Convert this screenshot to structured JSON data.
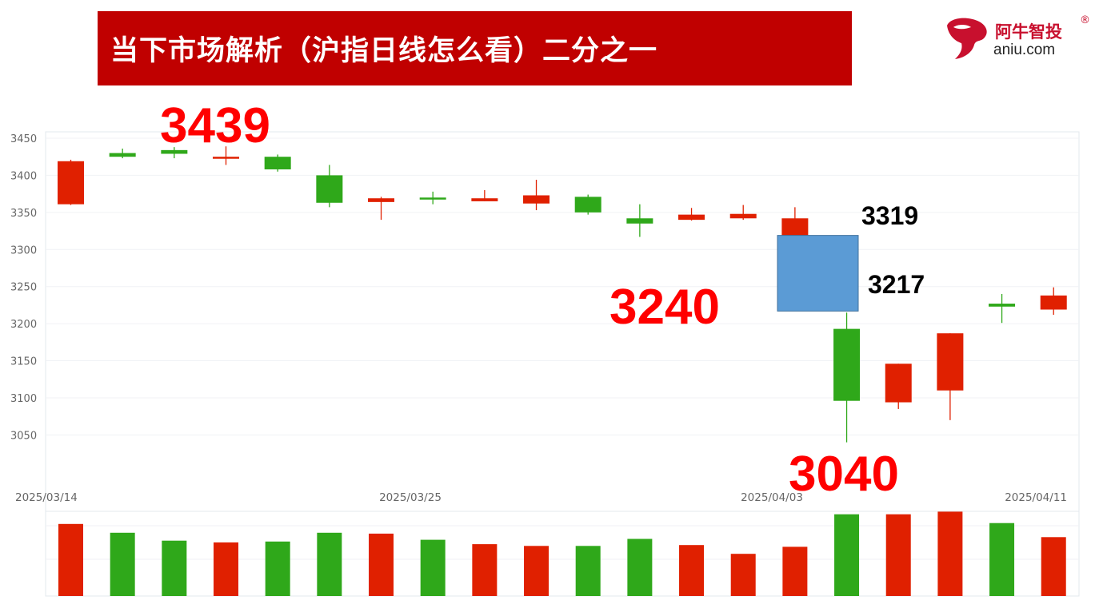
{
  "slide": {
    "title": "当下市场解析（沪指日线怎么看）二分之一"
  },
  "logo": {
    "brand": "阿牛智投",
    "registered": "®",
    "domain": "aniu.com"
  },
  "chart_data": {
    "type": "candlestick",
    "title": "",
    "ylim": [
      3020,
      3460
    ],
    "y_ticks": [
      3050,
      3100,
      3150,
      3200,
      3250,
      3300,
      3350,
      3400,
      3450
    ],
    "x_tick_labels": [
      "2025/03/14",
      "2025/03/25",
      "2025/04/03",
      "2025/04/11"
    ],
    "grid": true,
    "up_color": "#e02000",
    "down_color": "#2fa81a",
    "candles": [
      {
        "open": 3361,
        "high": 3421,
        "low": 3360,
        "close": 3419
      },
      {
        "open": 3430,
        "high": 3436,
        "low": 3423,
        "close": 3425
      },
      {
        "open": 3434,
        "high": 3438,
        "low": 3423,
        "close": 3429
      },
      {
        "open": 3423,
        "high": 3439,
        "low": 3414,
        "close": 3425
      },
      {
        "open": 3425,
        "high": 3428,
        "low": 3405,
        "close": 3408
      },
      {
        "open": 3400,
        "high": 3414,
        "low": 3357,
        "close": 3363
      },
      {
        "open": 3364,
        "high": 3371,
        "low": 3340,
        "close": 3369
      },
      {
        "open": 3370,
        "high": 3378,
        "low": 3361,
        "close": 3369
      },
      {
        "open": 3365,
        "high": 3380,
        "low": 3365,
        "close": 3369
      },
      {
        "open": 3362,
        "high": 3394,
        "low": 3353,
        "close": 3373
      },
      {
        "open": 3371,
        "high": 3374,
        "low": 3347,
        "close": 3350
      },
      {
        "open": 3342,
        "high": 3361,
        "low": 3317,
        "close": 3335
      },
      {
        "open": 3340,
        "high": 3356,
        "low": 3339,
        "close": 3347
      },
      {
        "open": 3342,
        "high": 3360,
        "low": 3340,
        "close": 3348
      },
      {
        "open": 3319,
        "high": 3357,
        "low": 3300,
        "close": 3342
      },
      {
        "open": 3193,
        "high": 3215,
        "low": 3040,
        "close": 3096
      },
      {
        "open": 3094,
        "high": 3146,
        "low": 3085,
        "close": 3146
      },
      {
        "open": 3110,
        "high": 3187,
        "low": 3070,
        "close": 3187
      },
      {
        "open": 3227,
        "high": 3240,
        "low": 3201,
        "close": 3223
      },
      {
        "open": 3219,
        "high": 3249,
        "low": 3212,
        "close": 3238
      }
    ],
    "volume": [
      0.82,
      0.72,
      0.63,
      0.61,
      0.62,
      0.72,
      0.71,
      0.64,
      0.59,
      0.57,
      0.57,
      0.65,
      0.58,
      0.48,
      0.56,
      0.93,
      0.93,
      0.96,
      0.83,
      0.67
    ],
    "annotations": {
      "high": "3439",
      "mid": "3240",
      "low": "3040",
      "gap_top": "3319",
      "gap_bottom": "3217"
    },
    "gap_zone": {
      "from": 3217,
      "to": 3319,
      "color": "#5b9bd5"
    }
  }
}
